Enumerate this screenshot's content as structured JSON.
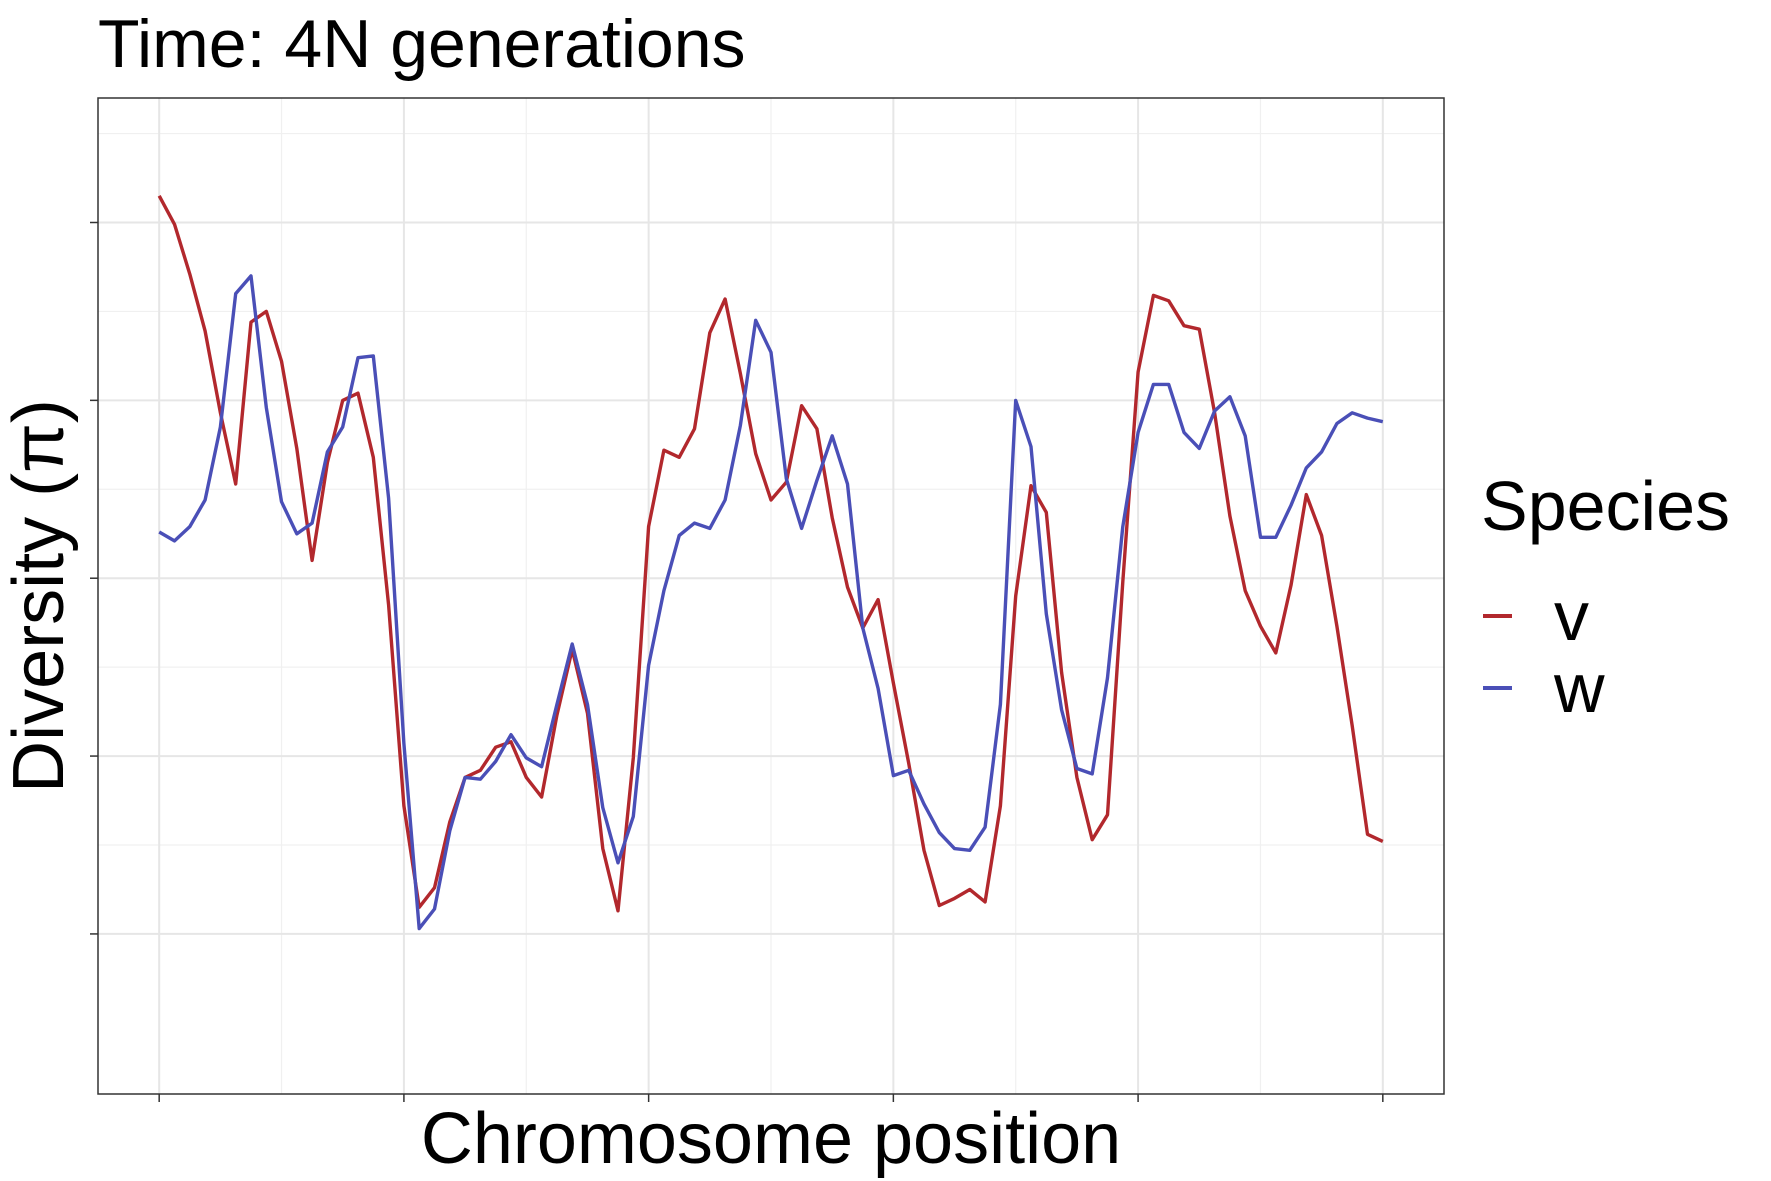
{
  "chart_data": {
    "type": "line",
    "title": "Time: 4N generations",
    "xlabel": "Chromosome position",
    "ylabel": "Diversity (π)",
    "x_tick_labels_shown": false,
    "y_tick_labels_shown": false,
    "xlim": [
      -0.25,
      5.25
    ],
    "ylim": [
      0.1,
      5.7
    ],
    "x_ticks": [
      0,
      1,
      2,
      3,
      4,
      5
    ],
    "y_ticks": [
      1,
      2,
      3,
      4,
      5
    ],
    "grid": true,
    "legend": {
      "title": "Species",
      "placement": "right"
    },
    "x": [
      0,
      0.0625,
      0.125,
      0.1875,
      0.25,
      0.3125,
      0.375,
      0.4375,
      0.5,
      0.5625,
      0.625,
      0.6875,
      0.75,
      0.8125,
      0.875,
      0.9375,
      1.0,
      1.0625,
      1.125,
      1.1875,
      1.25,
      1.3125,
      1.375,
      1.4375,
      1.5,
      1.5625,
      1.625,
      1.6875,
      1.75,
      1.8125,
      1.875,
      1.9375,
      2.0,
      2.0625,
      2.125,
      2.1875,
      2.25,
      2.3125,
      2.375,
      2.4375,
      2.5,
      2.5625,
      2.625,
      2.6875,
      2.75,
      2.8125,
      2.875,
      2.9375,
      3.0,
      3.0625,
      3.125,
      3.1875,
      3.25,
      3.3125,
      3.375,
      3.4375,
      3.5,
      3.5625,
      3.625,
      3.6875,
      3.75,
      3.8125,
      3.875,
      3.9375,
      4.0,
      4.0625,
      4.125,
      4.1875,
      4.25,
      4.3125,
      4.375,
      4.4375,
      4.5,
      4.5625,
      4.625,
      4.6875,
      4.75,
      4.8125,
      4.875,
      4.9375,
      5.0
    ],
    "series": [
      {
        "name": "v",
        "color": "#b2282d",
        "values": [
          5.15,
          4.99,
          4.71,
          4.39,
          3.93,
          3.53,
          4.44,
          4.5,
          4.22,
          3.73,
          3.1,
          3.65,
          4.0,
          4.04,
          3.68,
          2.85,
          1.72,
          1.15,
          1.26,
          1.63,
          1.88,
          1.92,
          2.05,
          2.08,
          1.88,
          1.77,
          2.23,
          2.6,
          2.24,
          1.48,
          1.13,
          1.99,
          3.29,
          3.72,
          3.68,
          3.84,
          4.38,
          4.57,
          4.15,
          3.7,
          3.44,
          3.54,
          3.97,
          3.84,
          3.34,
          2.95,
          2.72,
          2.88,
          2.41,
          1.96,
          1.47,
          1.16,
          1.2,
          1.25,
          1.18,
          1.72,
          2.9,
          3.52,
          3.37,
          2.47,
          1.88,
          1.53,
          1.67,
          2.98,
          4.16,
          4.59,
          4.56,
          4.42,
          4.4,
          3.93,
          3.35,
          2.93,
          2.73,
          2.58,
          2.96,
          3.47,
          3.24,
          2.73,
          2.17,
          1.56,
          1.52
        ]
      },
      {
        "name": "w",
        "color": "#4a4fb7",
        "values": [
          3.26,
          3.21,
          3.29,
          3.44,
          3.85,
          4.6,
          4.7,
          3.96,
          3.43,
          3.25,
          3.31,
          3.71,
          3.85,
          4.24,
          4.25,
          3.45,
          2.07,
          1.03,
          1.14,
          1.58,
          1.88,
          1.87,
          1.97,
          2.12,
          1.99,
          1.94,
          2.29,
          2.63,
          2.29,
          1.71,
          1.4,
          1.66,
          2.51,
          2.93,
          3.24,
          3.31,
          3.28,
          3.44,
          3.86,
          4.45,
          4.27,
          3.56,
          3.28,
          3.55,
          3.8,
          3.53,
          2.72,
          2.38,
          1.89,
          1.92,
          1.73,
          1.57,
          1.48,
          1.47,
          1.6,
          2.29,
          4.0,
          3.74,
          2.8,
          2.26,
          1.93,
          1.9,
          2.44,
          3.29,
          3.82,
          4.09,
          4.09,
          3.82,
          3.73,
          3.94,
          4.02,
          3.8,
          3.23,
          3.23,
          3.41,
          3.62,
          3.71,
          3.87,
          3.93,
          3.9,
          3.88
        ]
      }
    ]
  }
}
